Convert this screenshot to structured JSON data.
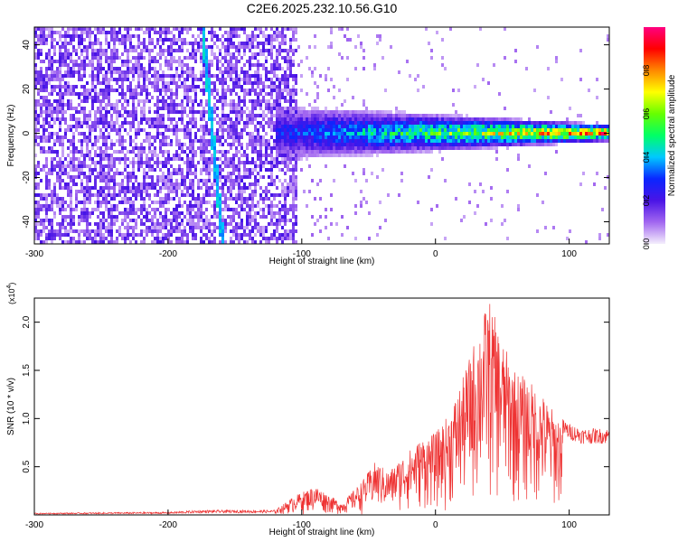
{
  "title": "C2E6.2025.232.10.56.G10",
  "chart_data": [
    {
      "type": "heatmap",
      "xlabel": "Height of straight line (km)",
      "ylabel": "Frequency (Hz)",
      "xlim": [
        -300,
        130
      ],
      "ylim": [
        -50,
        48
      ],
      "xticks": [
        -300,
        -200,
        -100,
        0,
        100
      ],
      "yticks": [
        -40,
        -20,
        0,
        20,
        40
      ],
      "colorbar": {
        "label": "Normalized spectral amplitude",
        "range": [
          0,
          1
        ],
        "ticks": [
          "0.0",
          "0.2",
          "0.4",
          "0.6",
          "0.8"
        ],
        "tick_values": [
          0,
          0.2,
          0.4,
          0.6,
          0.8
        ]
      },
      "features": [
        {
          "name": "noise-region",
          "x_range": [
            -300,
            -105
          ],
          "freq_range": [
            -50,
            48
          ],
          "amplitude": 0.15
        },
        {
          "name": "slanted-line",
          "x_start": -175,
          "freq_start": 48,
          "x_end": -160,
          "freq_end": -50,
          "amplitude": 0.35
        },
        {
          "name": "signal-band",
          "x_range": [
            -120,
            130
          ],
          "center_freq": 1,
          "amplitude_start": 0.3,
          "amplitude_end": 0.95
        }
      ]
    },
    {
      "type": "line",
      "xlabel": "Height of straight line (km)",
      "ylabel": "SNR (10 * v/v)",
      "scale_label": "(x10",
      "scale_exp": "4",
      "xlim": [
        -300,
        130
      ],
      "ylim": [
        0,
        2.25
      ],
      "xticks": [
        -300,
        -200,
        -100,
        0,
        100
      ],
      "yticks": [
        "0.5",
        "1.0",
        "1.5",
        "2.0"
      ],
      "ytick_values": [
        0.5,
        1.0,
        1.5,
        2.0
      ],
      "color": "#ee3333",
      "envelope": {
        "x": [
          -300,
          -200,
          -175,
          -120,
          -105,
          -90,
          -70,
          -55,
          -45,
          -35,
          -25,
          -10,
          0,
          10,
          20,
          30,
          40,
          50,
          60,
          70,
          80,
          90,
          100,
          110,
          120,
          130
        ],
        "y": [
          0.02,
          0.03,
          0.05,
          0.05,
          0.2,
          0.3,
          0.12,
          0.35,
          0.55,
          0.45,
          0.6,
          0.8,
          0.85,
          1.05,
          1.4,
          1.85,
          2.25,
          1.8,
          1.5,
          1.4,
          1.25,
          1.05,
          0.95,
          0.9,
          0.9,
          0.9
        ]
      }
    }
  ]
}
